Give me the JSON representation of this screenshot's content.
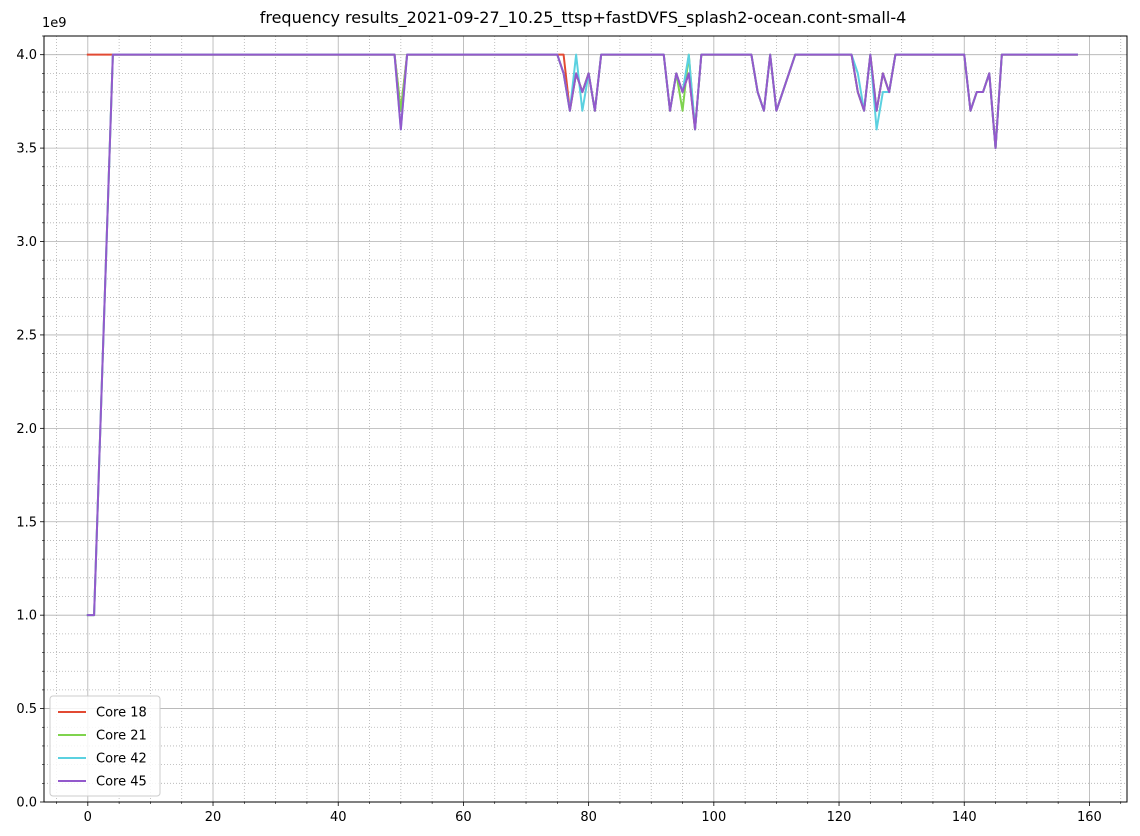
{
  "chart_data": {
    "type": "line",
    "title": "frequency results_2021-09-27_10.25_ttsp+fastDVFS_splash2-ocean.cont-small-4",
    "xlabel": "",
    "ylabel": "",
    "y_offset_text": "1e9",
    "xlim": [
      -7,
      166
    ],
    "ylim": [
      0,
      4.1
    ],
    "x_ticks": [
      0,
      20,
      40,
      60,
      80,
      100,
      120,
      140,
      160
    ],
    "x_tick_labels": [
      "0",
      "20",
      "40",
      "60",
      "80",
      "100",
      "120",
      "140",
      "160"
    ],
    "y_ticks": [
      0,
      0.5,
      1.0,
      1.5,
      2.0,
      2.5,
      3.0,
      3.5,
      4.0
    ],
    "y_tick_labels": [
      "0.0",
      "0.5",
      "1.0",
      "1.5",
      "2.0",
      "2.5",
      "3.0",
      "3.5",
      "4.0"
    ],
    "grid": "major solid, minor dotted",
    "legend_position": "lower-left",
    "series": [
      {
        "name": "Core 18",
        "color": "#e24a33",
        "points": [
          [
            0,
            4.0
          ],
          [
            4,
            4.0
          ],
          [
            49,
            4.0
          ],
          [
            50,
            3.7
          ],
          [
            51,
            4.0
          ],
          [
            75,
            4.0
          ],
          [
            76,
            4.0
          ],
          [
            77,
            3.7
          ],
          [
            78,
            3.9
          ],
          [
            79,
            3.8
          ],
          [
            80,
            3.9
          ],
          [
            81,
            3.7
          ],
          [
            82,
            4.0
          ],
          [
            92,
            4.0
          ],
          [
            93,
            3.7
          ],
          [
            94,
            3.9
          ],
          [
            95,
            3.8
          ],
          [
            96,
            3.9
          ],
          [
            97,
            3.6
          ],
          [
            98,
            4.0
          ],
          [
            106,
            4.0
          ],
          [
            107,
            3.8
          ],
          [
            108,
            3.7
          ],
          [
            109,
            4.0
          ],
          [
            110,
            3.7
          ],
          [
            113,
            4.0
          ],
          [
            122,
            4.0
          ],
          [
            123,
            3.8
          ],
          [
            124,
            3.7
          ],
          [
            125,
            4.0
          ],
          [
            126,
            3.7
          ],
          [
            127,
            3.9
          ],
          [
            128,
            3.8
          ],
          [
            129,
            4.0
          ],
          [
            140,
            4.0
          ],
          [
            141,
            3.7
          ],
          [
            142,
            3.8
          ],
          [
            143,
            3.8
          ],
          [
            144,
            3.9
          ],
          [
            145,
            3.5
          ],
          [
            146,
            4.0
          ],
          [
            158,
            4.0
          ]
        ]
      },
      {
        "name": "Core 21",
        "color": "#7fd34e",
        "points": [
          [
            0,
            1.0
          ],
          [
            1,
            1.0
          ],
          [
            4,
            4.0
          ],
          [
            49,
            4.0
          ],
          [
            50,
            3.7
          ],
          [
            51,
            4.0
          ],
          [
            75,
            4.0
          ],
          [
            76,
            3.9
          ],
          [
            77,
            3.7
          ],
          [
            78,
            3.9
          ],
          [
            79,
            3.8
          ],
          [
            80,
            3.9
          ],
          [
            81,
            3.7
          ],
          [
            82,
            4.0
          ],
          [
            92,
            4.0
          ],
          [
            93,
            3.7
          ],
          [
            94,
            3.9
          ],
          [
            95,
            3.7
          ],
          [
            96,
            4.0
          ],
          [
            97,
            3.6
          ],
          [
            98,
            4.0
          ],
          [
            106,
            4.0
          ],
          [
            107,
            3.8
          ],
          [
            108,
            3.7
          ],
          [
            109,
            4.0
          ],
          [
            110,
            3.7
          ],
          [
            113,
            4.0
          ],
          [
            122,
            4.0
          ],
          [
            123,
            3.8
          ],
          [
            124,
            3.7
          ],
          [
            125,
            4.0
          ],
          [
            126,
            3.7
          ],
          [
            127,
            3.9
          ],
          [
            128,
            3.8
          ],
          [
            129,
            4.0
          ],
          [
            140,
            4.0
          ],
          [
            141,
            3.7
          ],
          [
            142,
            3.8
          ],
          [
            143,
            3.8
          ],
          [
            144,
            3.9
          ],
          [
            145,
            3.5
          ],
          [
            146,
            4.0
          ],
          [
            158,
            4.0
          ]
        ]
      },
      {
        "name": "Core 42",
        "color": "#5bd1e0",
        "points": [
          [
            0,
            1.0
          ],
          [
            1,
            1.0
          ],
          [
            4,
            4.0
          ],
          [
            49,
            4.0
          ],
          [
            50,
            3.6
          ],
          [
            51,
            4.0
          ],
          [
            75,
            4.0
          ],
          [
            76,
            3.9
          ],
          [
            77,
            3.7
          ],
          [
            78,
            4.0
          ],
          [
            79,
            3.7
          ],
          [
            80,
            3.9
          ],
          [
            81,
            3.7
          ],
          [
            82,
            4.0
          ],
          [
            92,
            4.0
          ],
          [
            93,
            3.7
          ],
          [
            94,
            3.9
          ],
          [
            95,
            3.8
          ],
          [
            96,
            4.0
          ],
          [
            97,
            3.6
          ],
          [
            98,
            4.0
          ],
          [
            106,
            4.0
          ],
          [
            107,
            3.8
          ],
          [
            108,
            3.7
          ],
          [
            109,
            4.0
          ],
          [
            110,
            3.7
          ],
          [
            113,
            4.0
          ],
          [
            122,
            4.0
          ],
          [
            123,
            3.9
          ],
          [
            124,
            3.7
          ],
          [
            125,
            4.0
          ],
          [
            126,
            3.6
          ],
          [
            127,
            3.8
          ],
          [
            128,
            3.8
          ],
          [
            129,
            4.0
          ],
          [
            140,
            4.0
          ],
          [
            141,
            3.7
          ],
          [
            142,
            3.8
          ],
          [
            143,
            3.8
          ],
          [
            144,
            3.9
          ],
          [
            145,
            3.5
          ],
          [
            146,
            4.0
          ],
          [
            158,
            4.0
          ]
        ]
      },
      {
        "name": "Core 45",
        "color": "#9359cc",
        "points": [
          [
            0,
            1.0
          ],
          [
            1,
            1.0
          ],
          [
            4,
            4.0
          ],
          [
            49,
            4.0
          ],
          [
            50,
            3.6
          ],
          [
            51,
            4.0
          ],
          [
            75,
            4.0
          ],
          [
            76,
            3.9
          ],
          [
            77,
            3.7
          ],
          [
            78,
            3.9
          ],
          [
            79,
            3.8
          ],
          [
            80,
            3.9
          ],
          [
            81,
            3.7
          ],
          [
            82,
            4.0
          ],
          [
            92,
            4.0
          ],
          [
            93,
            3.7
          ],
          [
            94,
            3.9
          ],
          [
            95,
            3.8
          ],
          [
            96,
            3.9
          ],
          [
            97,
            3.6
          ],
          [
            98,
            4.0
          ],
          [
            106,
            4.0
          ],
          [
            107,
            3.8
          ],
          [
            108,
            3.7
          ],
          [
            109,
            4.0
          ],
          [
            110,
            3.7
          ],
          [
            113,
            4.0
          ],
          [
            122,
            4.0
          ],
          [
            123,
            3.8
          ],
          [
            124,
            3.7
          ],
          [
            125,
            4.0
          ],
          [
            126,
            3.7
          ],
          [
            127,
            3.9
          ],
          [
            128,
            3.8
          ],
          [
            129,
            4.0
          ],
          [
            140,
            4.0
          ],
          [
            141,
            3.7
          ],
          [
            142,
            3.8
          ],
          [
            143,
            3.8
          ],
          [
            144,
            3.9
          ],
          [
            145,
            3.5
          ],
          [
            146,
            4.0
          ],
          [
            158,
            4.0
          ]
        ]
      }
    ]
  }
}
